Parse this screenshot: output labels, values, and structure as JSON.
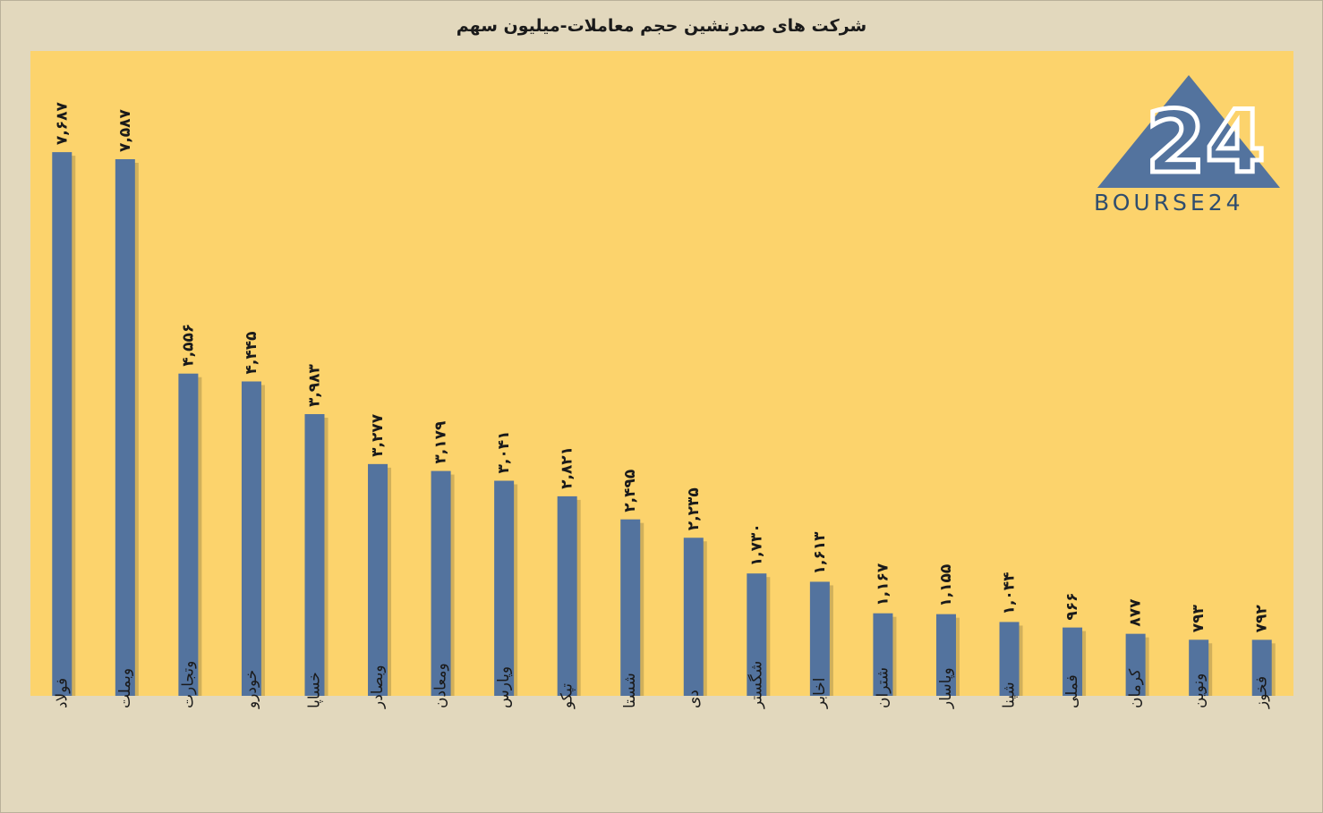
{
  "chart_data": {
    "type": "bar",
    "title": "شرکت های صدرنشین حجم معاملات-میلیون سهم",
    "categories": [
      "فولاد",
      "وبملت",
      "وتجارت",
      "خودرو",
      "خساپا",
      "وبصادر",
      "ومعادن",
      "وپارس",
      "تپکو",
      "شستا",
      "دی",
      "شگستر",
      "اخابر",
      "شتران",
      "وپاسار",
      "شپنا",
      "فملی",
      "کرمان",
      "ونوین",
      "فخوز"
    ],
    "values": [
      7687,
      7587,
      4556,
      4445,
      3983,
      3277,
      3179,
      3041,
      2821,
      2495,
      2235,
      1730,
      1613,
      1167,
      1155,
      1044,
      966,
      877,
      793,
      792
    ],
    "value_labels": [
      "۷,۶۸۷",
      "۷,۵۸۷",
      "۴,۵۵۶",
      "۴,۴۴۵",
      "۳,۹۸۳",
      "۳,۲۷۷",
      "۳,۱۷۹",
      "۳,۰۴۱",
      "۲,۸۲۱",
      "۲,۴۹۵",
      "۲,۲۳۵",
      "۱,۷۳۰",
      "۱,۶۱۳",
      "۱,۱۶۷",
      "۱,۱۵۵",
      "۱,۰۴۴",
      "۹۶۶",
      "۸۷۷",
      "۷۹۳",
      "۷۹۲"
    ],
    "ylim": [
      0,
      8700
    ],
    "grid": false,
    "legend": "none",
    "bar_color": "#53739e",
    "plot_background": "#fcd36c",
    "page_background": "#e2d8bd"
  },
  "logo": {
    "text": "BOURSE24",
    "number": "24",
    "color": "#53739e"
  }
}
